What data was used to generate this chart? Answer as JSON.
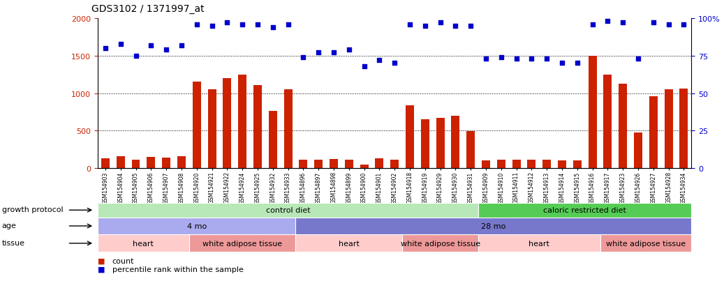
{
  "title": "GDS3102 / 1371997_at",
  "sample_labels": [
    "GSM154903",
    "GSM154904",
    "GSM154905",
    "GSM154906",
    "GSM154907",
    "GSM154908",
    "GSM154920",
    "GSM154921",
    "GSM154922",
    "GSM154924",
    "GSM154925",
    "GSM154932",
    "GSM154933",
    "GSM154896",
    "GSM154897",
    "GSM154898",
    "GSM154899",
    "GSM154900",
    "GSM154901",
    "GSM154902",
    "GSM154918",
    "GSM154919",
    "GSM154929",
    "GSM154930",
    "GSM154931",
    "GSM154909",
    "GSM154910",
    "GSM154911",
    "GSM154912",
    "GSM154913",
    "GSM154914",
    "GSM154915",
    "GSM154916",
    "GSM154917",
    "GSM154923",
    "GSM154926",
    "GSM154927",
    "GSM154928",
    "GSM154934"
  ],
  "bar_values": [
    130,
    160,
    110,
    150,
    145,
    160,
    1150,
    1050,
    1200,
    1250,
    1110,
    760,
    1050,
    110,
    115,
    125,
    115,
    50,
    130,
    110,
    840,
    650,
    670,
    700,
    490,
    100,
    115,
    110,
    110,
    110,
    105,
    100,
    1500,
    1250,
    1130,
    480,
    960,
    1050,
    1060
  ],
  "dot_values": [
    80,
    83,
    75,
    82,
    79,
    82,
    96,
    95,
    97,
    96,
    96,
    94,
    96,
    74,
    77,
    77,
    79,
    68,
    72,
    70,
    96,
    95,
    97,
    95,
    95,
    73,
    74,
    73,
    73,
    73,
    70,
    70,
    96,
    98,
    97,
    73,
    97,
    96,
    96
  ],
  "ylim_left": [
    0,
    2000
  ],
  "ylim_right": [
    0,
    100
  ],
  "yticks_left": [
    0,
    500,
    1000,
    1500,
    2000
  ],
  "yticks_right": [
    0,
    25,
    50,
    75,
    100
  ],
  "bar_color": "#cc2200",
  "dot_color": "#0000cc",
  "growth_protocol": {
    "label": "growth protocol",
    "segments": [
      {
        "text": "control diet",
        "start": 0,
        "end": 25,
        "color": "#b8e8b8"
      },
      {
        "text": "caloric restricted diet",
        "start": 25,
        "end": 39,
        "color": "#55cc55"
      }
    ]
  },
  "age": {
    "label": "age",
    "segments": [
      {
        "text": "4 mo",
        "start": 0,
        "end": 13,
        "color": "#aaaaee"
      },
      {
        "text": "28 mo",
        "start": 13,
        "end": 39,
        "color": "#7777cc"
      }
    ]
  },
  "tissue": {
    "label": "tissue",
    "segments": [
      {
        "text": "heart",
        "start": 0,
        "end": 6,
        "color": "#ffcccc"
      },
      {
        "text": "white adipose tissue",
        "start": 6,
        "end": 13,
        "color": "#ee9999"
      },
      {
        "text": "heart",
        "start": 13,
        "end": 20,
        "color": "#ffcccc"
      },
      {
        "text": "white adipose tissue",
        "start": 20,
        "end": 25,
        "color": "#ee9999"
      },
      {
        "text": "heart",
        "start": 25,
        "end": 33,
        "color": "#ffcccc"
      },
      {
        "text": "white adipose tissue",
        "start": 33,
        "end": 39,
        "color": "#ee9999"
      }
    ]
  }
}
